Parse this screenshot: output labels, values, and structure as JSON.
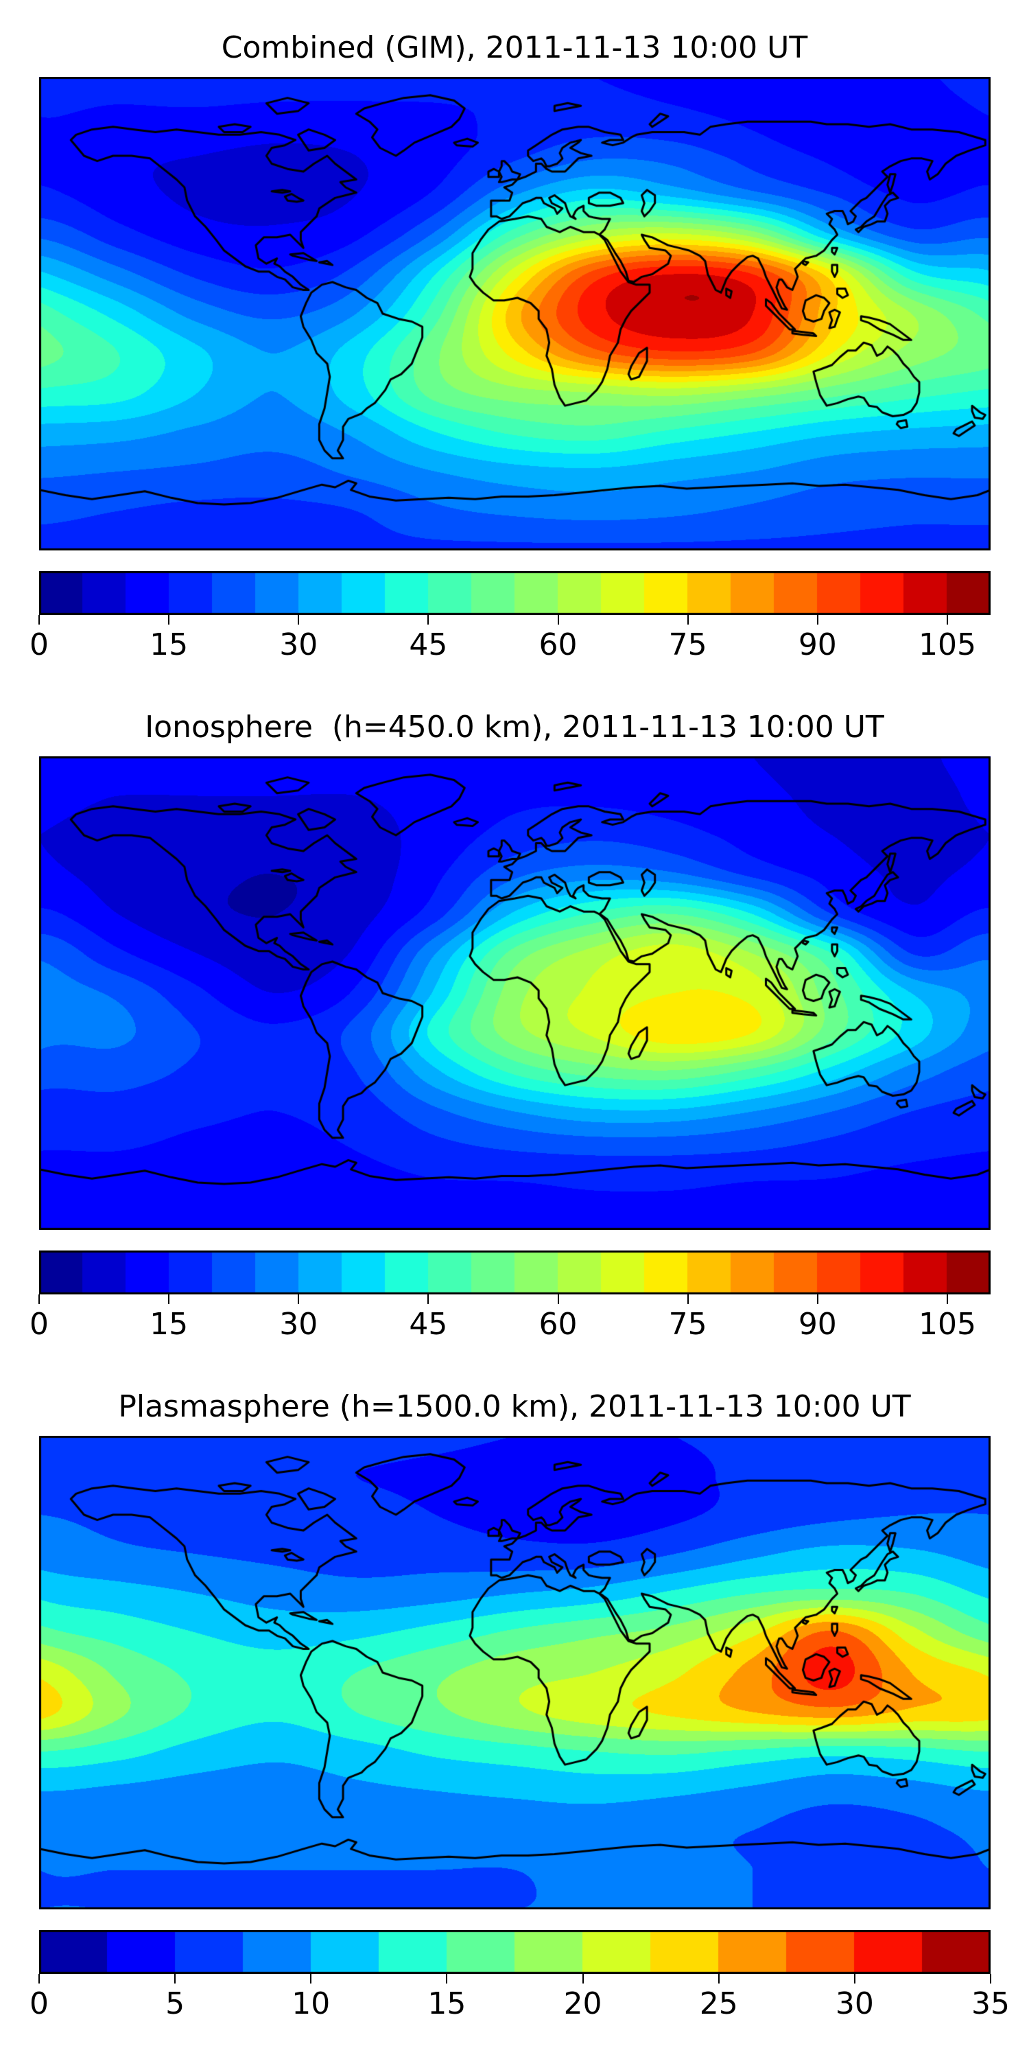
{
  "figure": {
    "background": "#ffffff",
    "accent_black": "#000000"
  },
  "panels": [
    {
      "title": "Combined (GIM), 2011-11-13 10:00 UT"
    },
    {
      "title": "Ionosphere  (h=450.0 km), 2011-11-13 10:00 UT"
    },
    {
      "title": "Plasmasphere (h=1500.0 km), 2011-11-13 10:00 UT"
    }
  ],
  "chart_data": [
    {
      "type": "heatmap",
      "title": "Combined (GIM), 2011-11-13 10:00 UT",
      "projection": "equirectangular",
      "colormap": "jet",
      "lon": [
        -180,
        -150,
        -120,
        -90,
        -60,
        -30,
        0,
        30,
        60,
        90,
        120,
        150,
        180
      ],
      "lat": [
        90,
        75,
        60,
        45,
        30,
        15,
        0,
        -15,
        -30,
        -45,
        -60,
        -75,
        -90
      ],
      "values": [
        [
          17,
          17,
          18,
          18,
          18,
          17,
          16,
          15,
          14,
          13,
          13,
          14,
          17
        ],
        [
          15,
          14,
          14,
          13,
          13,
          14,
          16,
          17,
          16,
          14,
          12,
          12,
          15
        ],
        [
          14,
          11,
          10,
          9,
          10,
          13,
          19,
          24,
          23,
          18,
          14,
          11,
          14
        ],
        [
          16,
          12,
          9,
          8,
          10,
          16,
          30,
          38,
          34,
          27,
          20,
          14,
          16
        ],
        [
          24,
          17,
          12,
          11,
          14,
          26,
          48,
          62,
          66,
          58,
          35,
          22,
          24
        ],
        [
          36,
          27,
          19,
          16,
          22,
          40,
          68,
          92,
          100,
          95,
          72,
          42,
          36
        ],
        [
          48,
          38,
          28,
          24,
          30,
          48,
          78,
          98,
          104,
          100,
          76,
          60,
          48
        ],
        [
          52,
          45,
          36,
          30,
          38,
          54,
          72,
          88,
          94,
          90,
          70,
          58,
          52
        ],
        [
          44,
          42,
          35,
          30,
          38,
          52,
          58,
          60,
          62,
          58,
          52,
          47,
          44
        ],
        [
          33,
          32,
          29,
          27,
          31,
          40,
          46,
          48,
          44,
          40,
          36,
          34,
          33
        ],
        [
          26,
          25,
          24,
          23,
          26,
          30,
          33,
          34,
          32,
          30,
          27,
          26,
          26
        ],
        [
          21,
          20,
          19,
          19,
          20,
          24,
          26,
          27,
          26,
          24,
          22,
          21,
          21
        ],
        [
          19,
          19,
          19,
          19,
          19,
          19,
          19,
          19,
          19,
          19,
          19,
          19,
          19
        ]
      ],
      "levels": {
        "min": 0,
        "max": 110,
        "step": 5
      },
      "colorbar_ticks": [
        0,
        15,
        30,
        45,
        60,
        75,
        90,
        105
      ]
    },
    {
      "type": "heatmap",
      "title": "Ionosphere  (h=450.0 km), 2011-11-13 10:00 UT",
      "projection": "equirectangular",
      "colormap": "jet",
      "lon": [
        -180,
        -150,
        -120,
        -90,
        -60,
        -30,
        0,
        30,
        60,
        90,
        120,
        150,
        180
      ],
      "lat": [
        90,
        75,
        60,
        45,
        30,
        15,
        0,
        -15,
        -30,
        -45,
        -60,
        -75,
        -90
      ],
      "values": [
        [
          12,
          12,
          12,
          13,
          13,
          13,
          13,
          13,
          12,
          10,
          9,
          9,
          12
        ],
        [
          11,
          10,
          10,
          10,
          10,
          12,
          14,
          14,
          13,
          11,
          9,
          8,
          11
        ],
        [
          10,
          8,
          7,
          7,
          8,
          12,
          17,
          19,
          17,
          13,
          10,
          8,
          10
        ],
        [
          11,
          8,
          6,
          5,
          7,
          14,
          24,
          28,
          26,
          19,
          13,
          9,
          11
        ],
        [
          16,
          10,
          6,
          5,
          8,
          18,
          36,
          46,
          50,
          40,
          20,
          11,
          16
        ],
        [
          24,
          16,
          10,
          7,
          11,
          30,
          52,
          62,
          68,
          60,
          45,
          20,
          24
        ],
        [
          28,
          24,
          16,
          10,
          16,
          36,
          58,
          66,
          70,
          68,
          52,
          35,
          28
        ],
        [
          27,
          26,
          20,
          16,
          22,
          42,
          58,
          66,
          74,
          70,
          52,
          38,
          27
        ],
        [
          22,
          22,
          19,
          16,
          20,
          34,
          46,
          52,
          54,
          48,
          38,
          28,
          22
        ],
        [
          18,
          18,
          16,
          15,
          17,
          24,
          30,
          34,
          34,
          30,
          25,
          20,
          18
        ],
        [
          15,
          15,
          14,
          14,
          15,
          18,
          20,
          21,
          21,
          20,
          18,
          16,
          15
        ],
        [
          13,
          13,
          13,
          13,
          13,
          14,
          14,
          15,
          15,
          14,
          14,
          13,
          13
        ],
        [
          12,
          12,
          12,
          12,
          12,
          12,
          12,
          12,
          12,
          12,
          12,
          12,
          12
        ]
      ],
      "levels": {
        "min": 0,
        "max": 110,
        "step": 5
      },
      "colorbar_ticks": [
        0,
        15,
        30,
        45,
        60,
        75,
        90,
        105
      ]
    },
    {
      "type": "heatmap",
      "title": "Plasmasphere (h=1500.0 km), 2011-11-13 10:00 UT",
      "projection": "equirectangular",
      "colormap": "jet",
      "lon": [
        -180,
        -150,
        -120,
        -90,
        -60,
        -30,
        0,
        30,
        60,
        90,
        120,
        150,
        180
      ],
      "lat": [
        90,
        75,
        60,
        45,
        30,
        15,
        0,
        -15,
        -30,
        -45,
        -60,
        -75,
        -90
      ],
      "values": [
        [
          6,
          6,
          6,
          6,
          6,
          5.5,
          5,
          5,
          5,
          5.5,
          6,
          6,
          6
        ],
        [
          6.5,
          6.5,
          6,
          5.5,
          5,
          4.5,
          4,
          4,
          4.5,
          5.5,
          6.5,
          7,
          6.5
        ],
        [
          7.5,
          7,
          6.5,
          6,
          6,
          5,
          4,
          3.5,
          4.5,
          6,
          7,
          7.5,
          7.5
        ],
        [
          9,
          8,
          7.5,
          7,
          6.5,
          6.5,
          6,
          6,
          7.5,
          9.5,
          11,
          10.5,
          9
        ],
        [
          12,
          11,
          10,
          9,
          8.5,
          9,
          10,
          11,
          13,
          15,
          16,
          15,
          12
        ],
        [
          16,
          14,
          12.5,
          11.5,
          12,
          13.5,
          15.5,
          17,
          18.5,
          22,
          28,
          21,
          16
        ],
        [
          22,
          17,
          14.5,
          13.5,
          15,
          17,
          19,
          20,
          22,
          26,
          31,
          25,
          22
        ],
        [
          23.5,
          18,
          14.5,
          13,
          15,
          17,
          19.5,
          21.5,
          23,
          25,
          26.5,
          24.5,
          23.5
        ],
        [
          15,
          13.5,
          11.5,
          10.5,
          11.5,
          13,
          14,
          15,
          15.5,
          14.5,
          13.5,
          14,
          15
        ],
        [
          10,
          9.5,
          9,
          9,
          9.5,
          10,
          10.5,
          11,
          10.5,
          9.5,
          8.5,
          9,
          10
        ],
        [
          8,
          8,
          8,
          8,
          8,
          8.5,
          8.5,
          8.5,
          8,
          7.5,
          6.5,
          7,
          8
        ],
        [
          7.5,
          7.5,
          7.5,
          7.5,
          7.5,
          7.5,
          7.5,
          8,
          8,
          7.5,
          7,
          7,
          7.5
        ],
        [
          7.5,
          7.5,
          7.5,
          7.5,
          7.5,
          7.5,
          7.5,
          7.5,
          7.5,
          7.5,
          7.5,
          7.5,
          7.5
        ]
      ],
      "levels": {
        "min": 0,
        "max": 35,
        "step": 2.5
      },
      "colorbar_ticks": [
        0,
        5,
        10,
        15,
        20,
        25,
        30,
        35
      ]
    }
  ]
}
